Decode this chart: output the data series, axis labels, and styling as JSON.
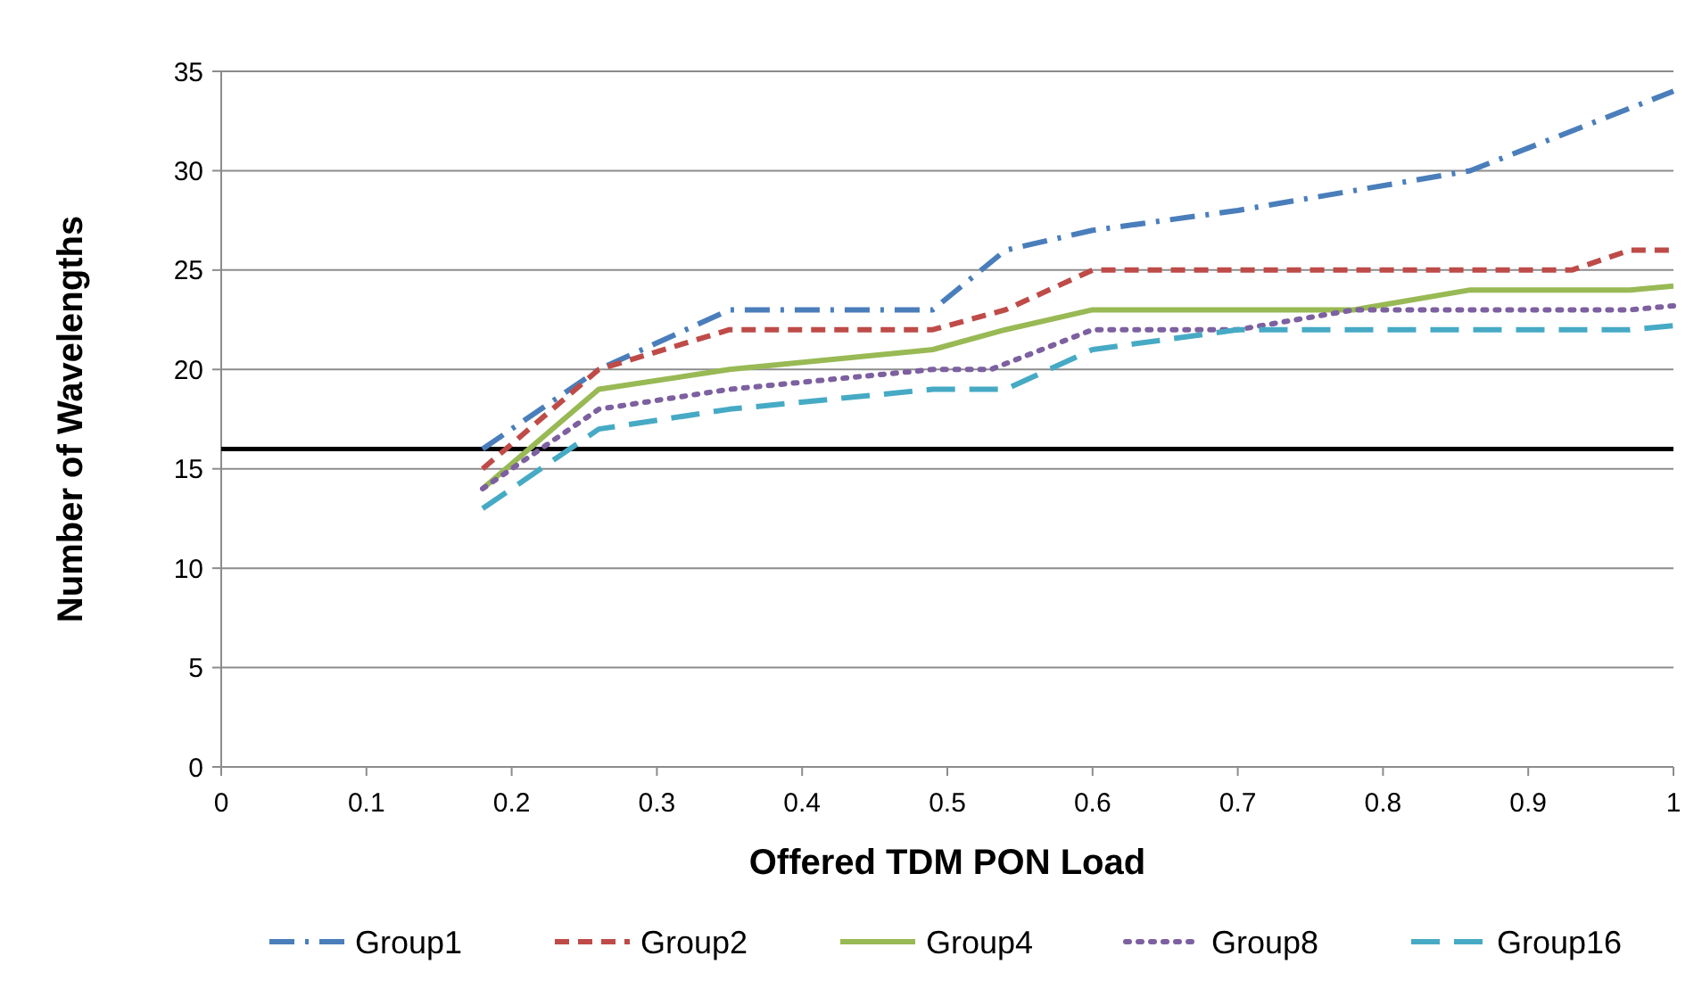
{
  "chart_data": {
    "type": "line",
    "xlabel": "Offered TDM PON Load",
    "ylabel": "Number of Wavelengths",
    "xlim": [
      0,
      1
    ],
    "xticks": [
      0,
      0.1,
      0.2,
      0.3,
      0.4,
      0.5,
      0.6,
      0.7,
      0.8,
      0.9,
      1
    ],
    "ylim": [
      0,
      35
    ],
    "yticks": [
      0,
      5,
      10,
      15,
      20,
      25,
      30,
      35
    ],
    "grid": "y",
    "legend": "bottom",
    "ref_lines": [
      {
        "axis": "y",
        "value": 16,
        "color": "#000000"
      }
    ],
    "series": [
      {
        "name": "Group1",
        "color": "#4a7ebb",
        "line_style": "dashdot",
        "x": [
          0.18,
          0.26,
          0.35,
          0.49,
          0.54,
          0.6,
          0.7,
          0.86,
          1.0
        ],
        "values": [
          16,
          20,
          23,
          23,
          26,
          27,
          28,
          30,
          34
        ]
      },
      {
        "name": "Group2",
        "color": "#be4b48",
        "line_style": "dashed",
        "x": [
          0.18,
          0.26,
          0.35,
          0.49,
          0.54,
          0.6,
          0.93,
          0.97,
          1.0
        ],
        "values": [
          15,
          20,
          22,
          22,
          23,
          25,
          25,
          26,
          26
        ]
      },
      {
        "name": "Group4",
        "color": "#98b954",
        "line_style": "solid",
        "x": [
          0.18,
          0.26,
          0.35,
          0.49,
          0.54,
          0.6,
          0.78,
          0.86,
          0.97,
          1.0
        ],
        "values": [
          14,
          19,
          20,
          21,
          22,
          23,
          23,
          24,
          24,
          24.2
        ]
      },
      {
        "name": "Group8",
        "color": "#7d60a0",
        "line_style": "dotted",
        "x": [
          0.18,
          0.26,
          0.35,
          0.49,
          0.53,
          0.6,
          0.7,
          0.78,
          0.97,
          1.0
        ],
        "values": [
          14,
          18,
          19,
          20,
          20,
          22,
          22,
          23,
          23,
          23.2
        ]
      },
      {
        "name": "Group16",
        "color": "#46aac5",
        "line_style": "longdash",
        "x": [
          0.18,
          0.26,
          0.35,
          0.49,
          0.54,
          0.6,
          0.7,
          0.97,
          1.0
        ],
        "values": [
          13,
          17,
          18,
          19,
          19,
          21,
          22,
          22,
          22.2
        ]
      }
    ]
  }
}
